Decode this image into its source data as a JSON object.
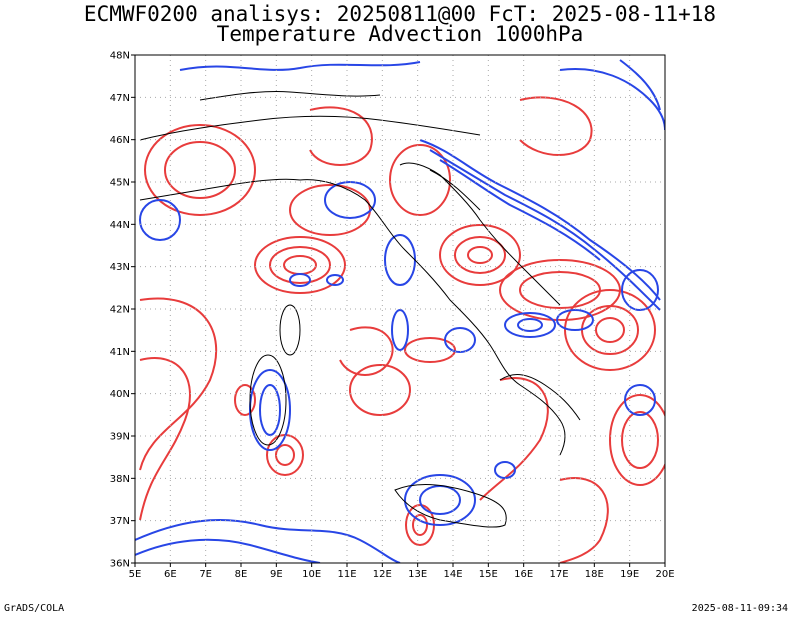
{
  "title": {
    "line1": "ECMWF0200 analisys: 20250811@00 FcT: 2025-08-11+18",
    "line2": "Temperature Advection 1000hPa"
  },
  "map": {
    "lon_range": [
      5,
      20
    ],
    "lat_range": [
      36,
      48
    ],
    "lon_ticks": [
      "5E",
      "6E",
      "7E",
      "8E",
      "9E",
      "10E",
      "11E",
      "12E",
      "13E",
      "14E",
      "15E",
      "16E",
      "17E",
      "18E",
      "19E",
      "20E"
    ],
    "lat_ticks": [
      "36N",
      "37N",
      "38N",
      "39N",
      "40N",
      "41N",
      "42N",
      "43N",
      "44N",
      "45N",
      "46N",
      "47N",
      "48N"
    ],
    "grid": true,
    "colors": {
      "warm_advection": "#e83c3c",
      "cold_advection": "#2846e6",
      "coastline": "#000000",
      "grid": "#aaaaaa"
    }
  },
  "footer": {
    "left": "GrADS/COLA",
    "right": "2025-08-11-09:34"
  }
}
